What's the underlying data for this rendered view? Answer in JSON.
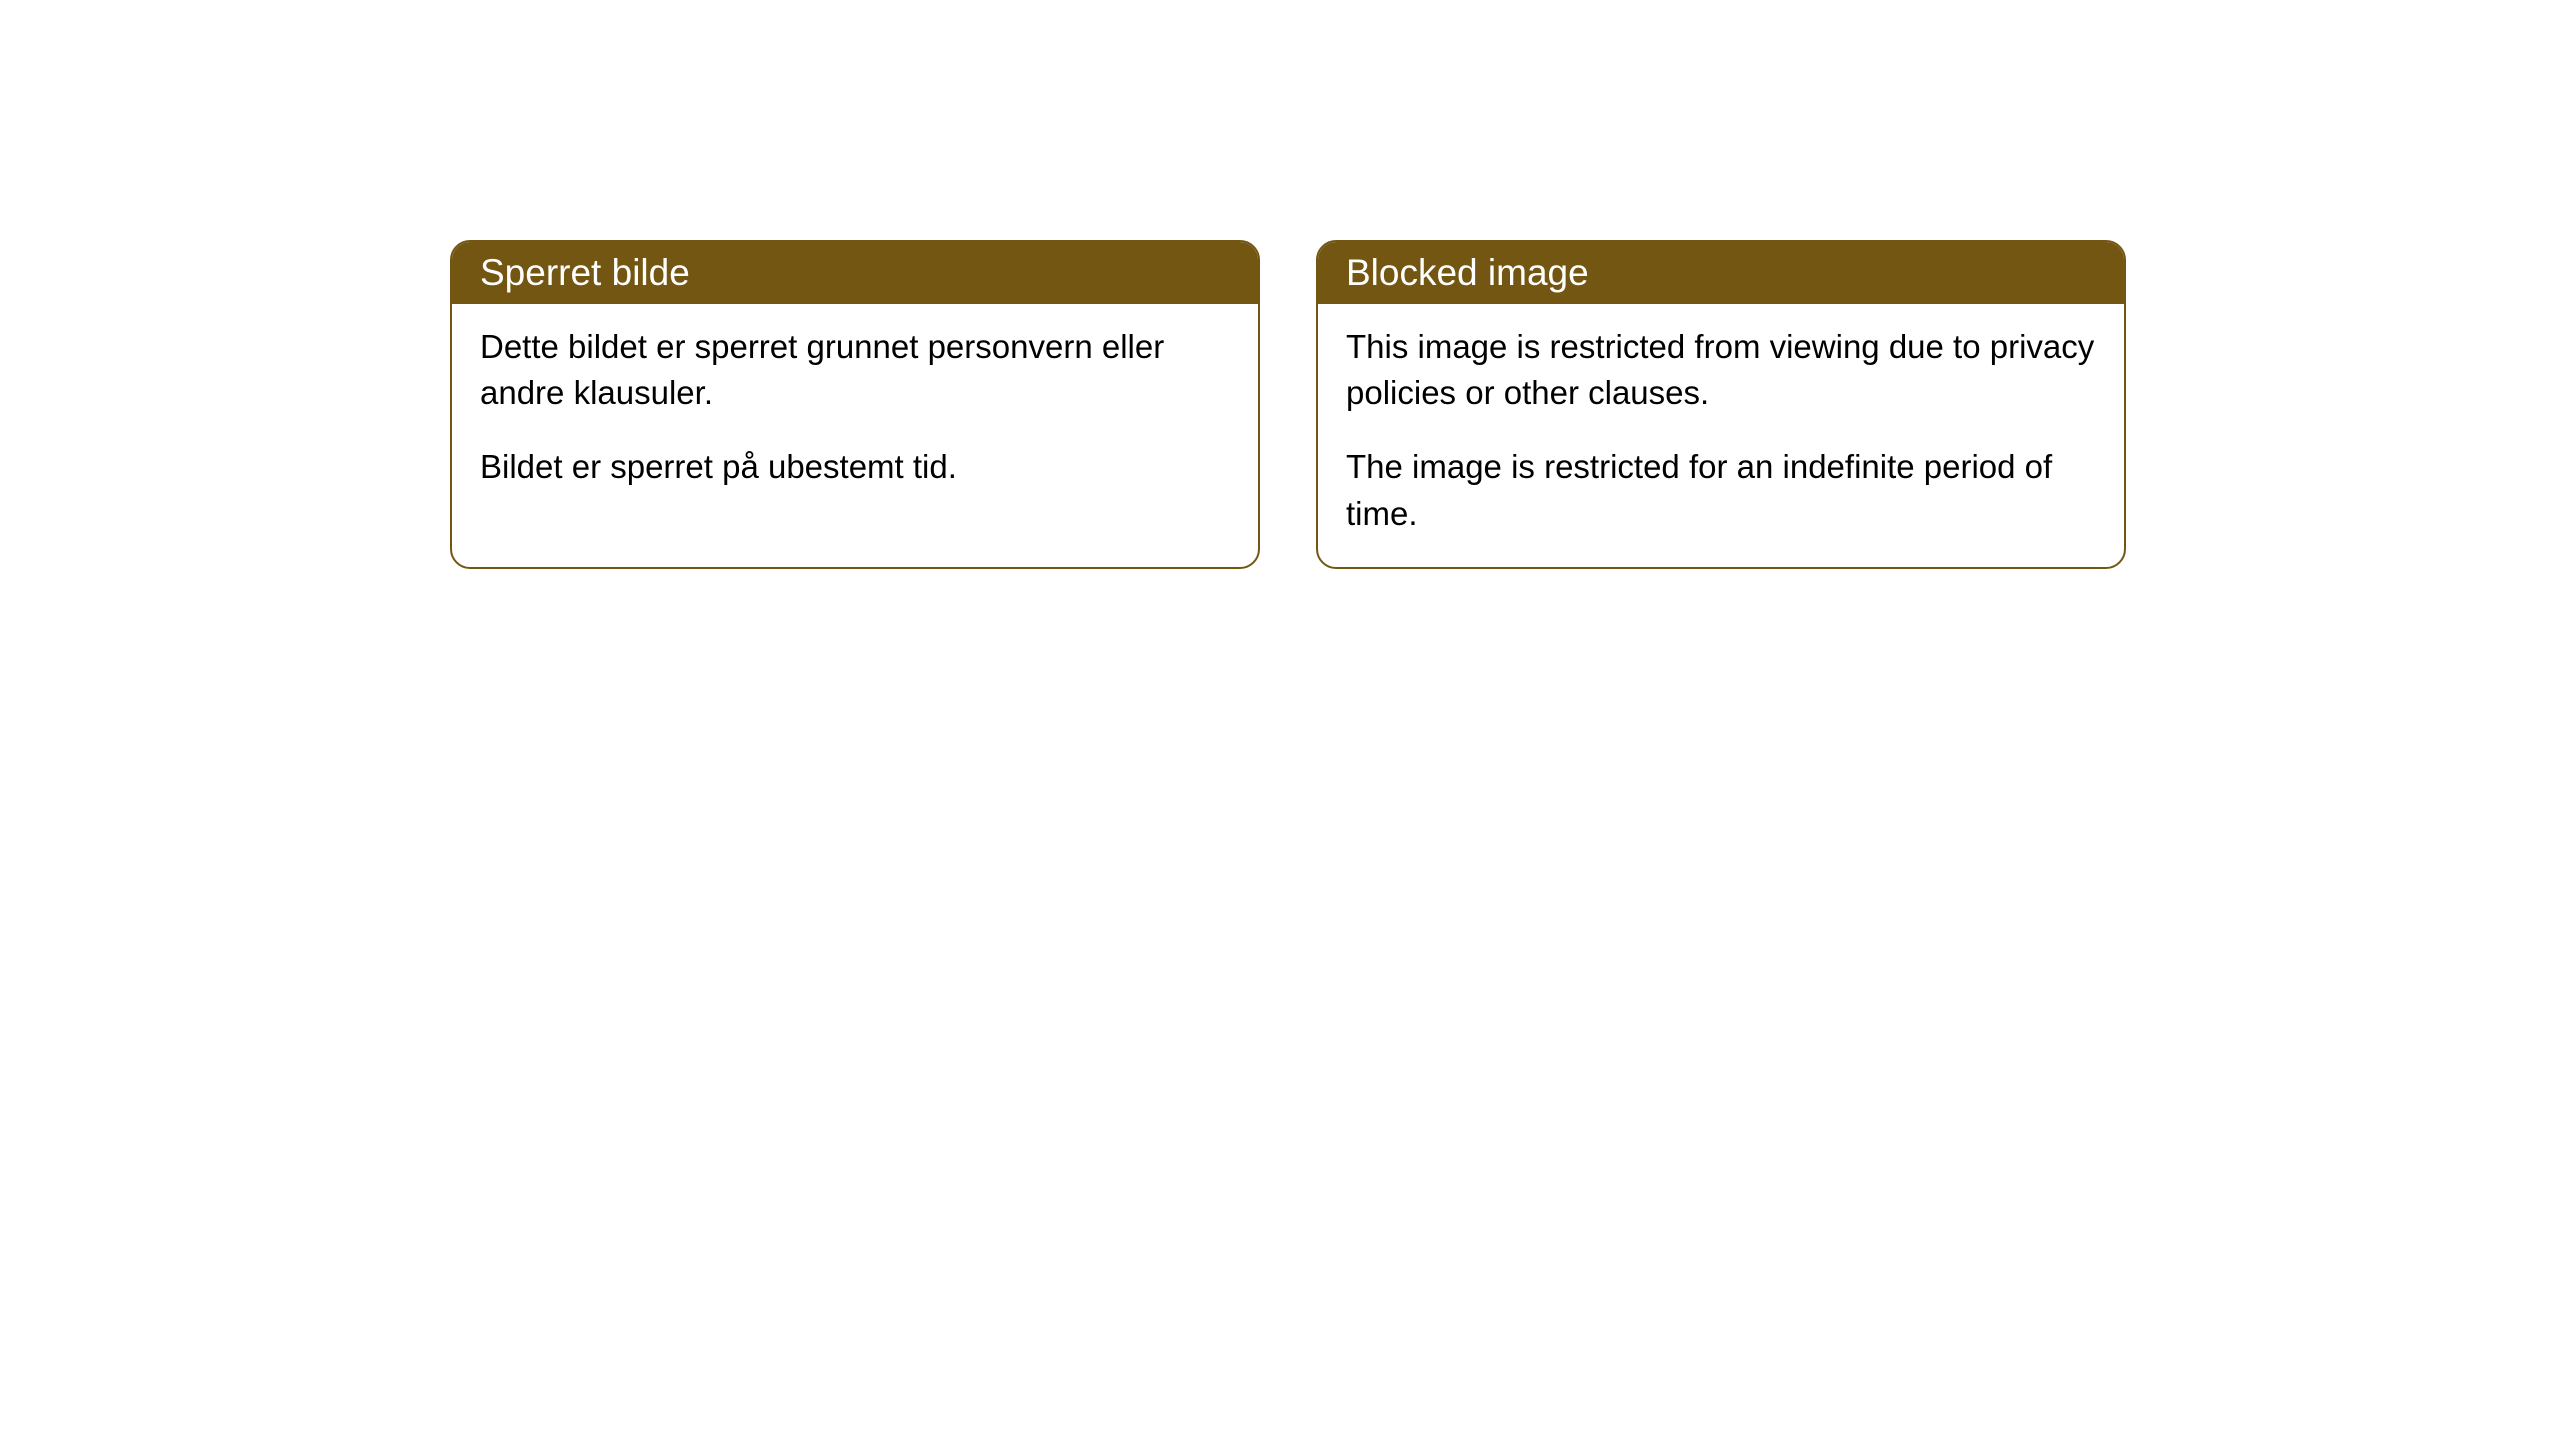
{
  "cards": [
    {
      "title": "Sperret bilde",
      "paragraph1": "Dette bildet er sperret grunnet personvern eller andre klausuler.",
      "paragraph2": "Bildet er sperret på ubestemt tid."
    },
    {
      "title": "Blocked image",
      "paragraph1": "This image is restricted from viewing due to privacy policies or other clauses.",
      "paragraph2": "The image is restricted for an indefinite period of time."
    }
  ],
  "styles": {
    "header_bg_color": "#735612",
    "header_text_color": "#ffffff",
    "border_color": "#735612",
    "body_bg_color": "#ffffff",
    "body_text_color": "#000000",
    "border_radius": 20,
    "title_fontsize": 37,
    "body_fontsize": 33
  }
}
